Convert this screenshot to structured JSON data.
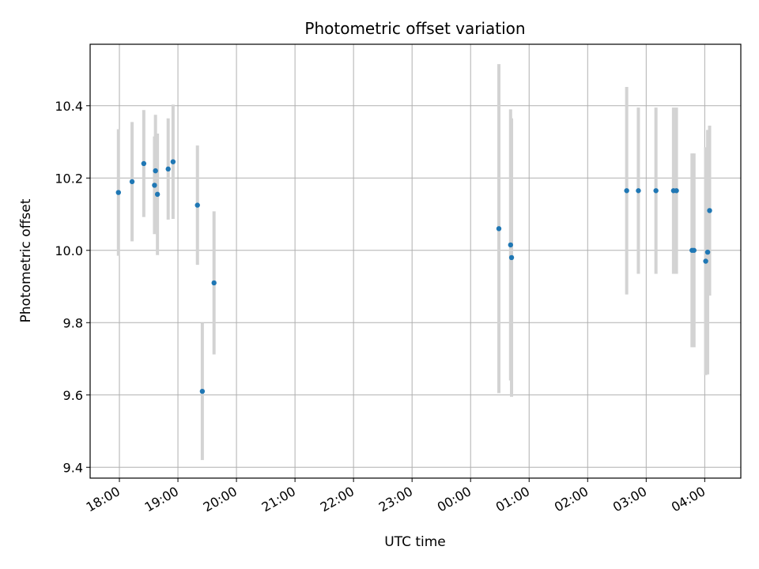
{
  "chart_data": {
    "type": "scatter",
    "title": "Photometric offset variation",
    "xlabel": "UTC time",
    "ylabel": "Photometric offset",
    "x_axis": "time",
    "xlim": [
      "17:30",
      "04:37"
    ],
    "ylim": [
      9.37,
      10.57
    ],
    "x_ticks": [
      "18:00",
      "19:00",
      "20:00",
      "21:00",
      "22:00",
      "23:00",
      "00:00",
      "01:00",
      "02:00",
      "03:00",
      "04:00"
    ],
    "y_ticks": [
      9.4,
      9.6,
      9.8,
      10.0,
      10.2,
      10.4
    ],
    "grid": true,
    "marker_color": "#1f77b4",
    "errorbar_color": "#d3d3d3",
    "points": [
      {
        "time": "17:59",
        "y": 10.16,
        "yerr": 0.175
      },
      {
        "time": "18:13",
        "y": 10.19,
        "yerr": 0.165
      },
      {
        "time": "18:25",
        "y": 10.24,
        "yerr": 0.148
      },
      {
        "time": "18:36",
        "y": 10.18,
        "yerr": 0.135
      },
      {
        "time": "18:37",
        "y": 10.22,
        "yerr": 0.155
      },
      {
        "time": "18:39",
        "y": 10.155,
        "yerr": 0.168
      },
      {
        "time": "18:50",
        "y": 10.225,
        "yerr": 0.14
      },
      {
        "time": "18:55",
        "y": 10.245,
        "yerr": 0.158
      },
      {
        "time": "19:20",
        "y": 10.125,
        "yerr": 0.165
      },
      {
        "time": "19:25",
        "y": 9.61,
        "yerr": 0.19
      },
      {
        "time": "19:37",
        "y": 9.91,
        "yerr": 0.198
      },
      {
        "time": "00:29",
        "y": 10.06,
        "yerr": 0.455
      },
      {
        "time": "00:41",
        "y": 10.015,
        "yerr": 0.375
      },
      {
        "time": "00:42",
        "y": 9.98,
        "yerr": 0.385
      },
      {
        "time": "02:40",
        "y": 10.165,
        "yerr": 0.287
      },
      {
        "time": "02:52",
        "y": 10.165,
        "yerr": 0.23
      },
      {
        "time": "03:10",
        "y": 10.165,
        "yerr": 0.23
      },
      {
        "time": "03:28",
        "y": 10.165,
        "yerr": 0.23
      },
      {
        "time": "03:31",
        "y": 10.165,
        "yerr": 0.23
      },
      {
        "time": "03:47",
        "y": 10.0,
        "yerr": 0.268
      },
      {
        "time": "03:49",
        "y": 10.0,
        "yerr": 0.268
      },
      {
        "time": "04:01",
        "y": 9.97,
        "yerr": 0.315
      },
      {
        "time": "04:03",
        "y": 9.995,
        "yerr": 0.338
      },
      {
        "time": "04:05",
        "y": 10.11,
        "yerr": 0.235
      }
    ]
  }
}
